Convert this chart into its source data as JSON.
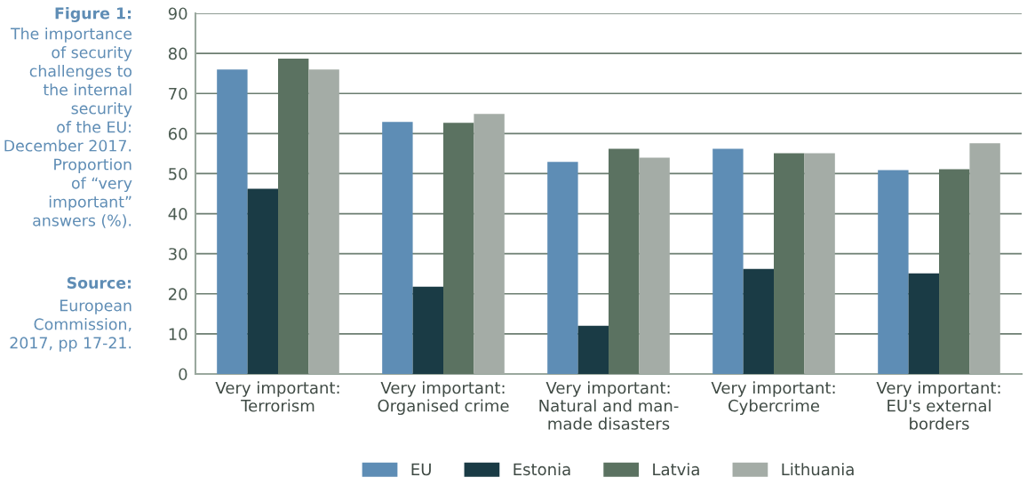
{
  "chart_data": {
    "type": "bar",
    "title": "Figure 1:",
    "subtitle": "The importance\nof security\nchallenges to\nthe internal\nsecurity\nof the EU:\nDecember 2017.\nProportion\nof “very\nimportant”\nanswers (%).",
    "annotations": [
      "Source:",
      "European\nCommission,\n2017, pp 17-21."
    ],
    "categories": [
      "Very important:\nTerrorism",
      "Very important:\nOrganised crime",
      "Very important:\nNatural and man-\nmade disasters",
      "Very important:\nCybercrime",
      "Very important:\nEU's external\nborders"
    ],
    "series": [
      {
        "name": "EU",
        "color": "#5e8db5",
        "values": [
          76.0,
          62.9,
          52.9,
          56.2,
          50.9
        ]
      },
      {
        "name": "Estonia",
        "color": "#1a3b45",
        "values": [
          46.2,
          21.8,
          12.0,
          26.2,
          25.1
        ]
      },
      {
        "name": "Latvia",
        "color": "#5b7261",
        "values": [
          78.7,
          62.7,
          56.2,
          55.1,
          51.1
        ]
      },
      {
        "name": "Lithuania",
        "color": "#a4aca6",
        "values": [
          76.0,
          64.9,
          54.0,
          55.1,
          57.6
        ]
      }
    ],
    "ylim": [
      0,
      90
    ],
    "yticks": [
      0,
      10,
      20,
      30,
      40,
      50,
      60,
      70,
      80,
      90
    ],
    "grid": "y",
    "legend": "bottom"
  }
}
